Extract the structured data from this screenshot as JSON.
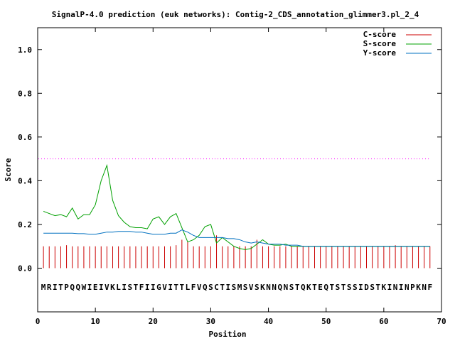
{
  "chart_data": {
    "type": "line",
    "title": "SignalP-4.0 prediction (euk networks): Contig-2_CDS_annotation_glimmer3.pl_2_4",
    "xlabel": "Position",
    "ylabel": "Score",
    "xlim": [
      0,
      70
    ],
    "ylim": [
      -0.2,
      1.1
    ],
    "x_ticks": [
      0,
      10,
      20,
      30,
      40,
      50,
      60,
      70
    ],
    "x_tick_labels": [
      "0",
      "10",
      "20",
      "30",
      "40",
      "50",
      "60",
      "70"
    ],
    "y_ticks": [
      0.0,
      0.2,
      0.4,
      0.6,
      0.8,
      1.0
    ],
    "y_tick_labels": [
      "0.0",
      "0.2",
      "0.4",
      "0.6",
      "0.8",
      "1.0"
    ],
    "grid": false,
    "legend_position": "top-right",
    "threshold": {
      "value": 0.5,
      "color": "#ff00ff"
    },
    "sequence": "MRITPQQWIEIVKLISTFIIGVITTLFVQSCTISMSVSKNNQNSTQKTEQTSTSSIDSTKININPKNF",
    "series": [
      {
        "name": "C-score",
        "style": "impulses",
        "color": "#cc0000",
        "x": [
          1,
          2,
          3,
          4,
          5,
          6,
          7,
          8,
          9,
          10,
          11,
          12,
          13,
          14,
          15,
          16,
          17,
          18,
          19,
          20,
          21,
          22,
          23,
          24,
          25,
          26,
          27,
          28,
          29,
          30,
          31,
          32,
          33,
          34,
          35,
          36,
          37,
          38,
          39,
          40,
          41,
          42,
          43,
          44,
          45,
          46,
          47,
          48,
          49,
          50,
          51,
          52,
          53,
          54,
          55,
          56,
          57,
          58,
          59,
          60,
          61,
          62,
          63,
          64,
          65,
          66,
          67,
          68
        ],
        "values": [
          0.1,
          0.1,
          0.1,
          0.1,
          0.105,
          0.1,
          0.1,
          0.1,
          0.1,
          0.1,
          0.1,
          0.1,
          0.1,
          0.1,
          0.1,
          0.1,
          0.1,
          0.1,
          0.1,
          0.1,
          0.1,
          0.1,
          0.1,
          0.105,
          0.13,
          0.12,
          0.1,
          0.1,
          0.1,
          0.1,
          0.15,
          0.1,
          0.1,
          0.1,
          0.1,
          0.1,
          0.1,
          0.13,
          0.1,
          0.1,
          0.1,
          0.1,
          0.1,
          0.1,
          0.1,
          0.1,
          0.1,
          0.1,
          0.1,
          0.1,
          0.1,
          0.1,
          0.1,
          0.1,
          0.1,
          0.1,
          0.1,
          0.1,
          0.1,
          0.1,
          0.1,
          0.105,
          0.1,
          0.1,
          0.1,
          0.1,
          0.1,
          0.1
        ]
      },
      {
        "name": "S-score",
        "style": "line",
        "color": "#00a000",
        "x": [
          1,
          2,
          3,
          4,
          5,
          6,
          7,
          8,
          9,
          10,
          11,
          12,
          13,
          14,
          15,
          16,
          17,
          18,
          19,
          20,
          21,
          22,
          23,
          24,
          25,
          26,
          27,
          28,
          29,
          30,
          31,
          32,
          33,
          34,
          35,
          36,
          37,
          38,
          39,
          40,
          41,
          42,
          43,
          44,
          45,
          46,
          47,
          48,
          49,
          50,
          51,
          52,
          53,
          54,
          55,
          56,
          57,
          58,
          59,
          60,
          61,
          62,
          63,
          64,
          65,
          66,
          67,
          68
        ],
        "values": [
          0.26,
          0.25,
          0.24,
          0.245,
          0.235,
          0.275,
          0.225,
          0.245,
          0.245,
          0.29,
          0.4,
          0.47,
          0.31,
          0.24,
          0.21,
          0.19,
          0.185,
          0.185,
          0.18,
          0.225,
          0.235,
          0.2,
          0.235,
          0.25,
          0.185,
          0.12,
          0.13,
          0.15,
          0.19,
          0.2,
          0.115,
          0.14,
          0.12,
          0.1,
          0.09,
          0.085,
          0.09,
          0.11,
          0.13,
          0.11,
          0.105,
          0.105,
          0.11,
          0.1,
          0.1,
          0.1,
          0.1,
          0.1,
          0.1,
          0.1,
          0.1,
          0.1,
          0.1,
          0.1,
          0.1,
          0.1,
          0.1,
          0.1,
          0.1,
          0.1,
          0.1,
          0.1,
          0.1,
          0.1,
          0.1,
          0.1,
          0.1,
          0.1
        ]
      },
      {
        "name": "Y-score",
        "style": "line",
        "color": "#0070c0",
        "x": [
          1,
          2,
          3,
          4,
          5,
          6,
          7,
          8,
          9,
          10,
          11,
          12,
          13,
          14,
          15,
          16,
          17,
          18,
          19,
          20,
          21,
          22,
          23,
          24,
          25,
          26,
          27,
          28,
          29,
          30,
          31,
          32,
          33,
          34,
          35,
          36,
          37,
          38,
          39,
          40,
          41,
          42,
          43,
          44,
          45,
          46,
          47,
          48,
          49,
          50,
          51,
          52,
          53,
          54,
          55,
          56,
          57,
          58,
          59,
          60,
          61,
          62,
          63,
          64,
          65,
          66,
          67,
          68
        ],
        "values": [
          0.16,
          0.16,
          0.16,
          0.16,
          0.16,
          0.16,
          0.158,
          0.158,
          0.155,
          0.155,
          0.16,
          0.165,
          0.165,
          0.168,
          0.168,
          0.168,
          0.165,
          0.165,
          0.16,
          0.155,
          0.155,
          0.155,
          0.16,
          0.16,
          0.175,
          0.165,
          0.15,
          0.14,
          0.14,
          0.14,
          0.14,
          0.14,
          0.135,
          0.135,
          0.13,
          0.12,
          0.115,
          0.12,
          0.115,
          0.11,
          0.11,
          0.11,
          0.105,
          0.105,
          0.105,
          0.1,
          0.1,
          0.1,
          0.1,
          0.1,
          0.1,
          0.1,
          0.1,
          0.1,
          0.1,
          0.1,
          0.1,
          0.1,
          0.1,
          0.1,
          0.1,
          0.1,
          0.1,
          0.1,
          0.1,
          0.1,
          0.1,
          0.1
        ]
      }
    ]
  }
}
